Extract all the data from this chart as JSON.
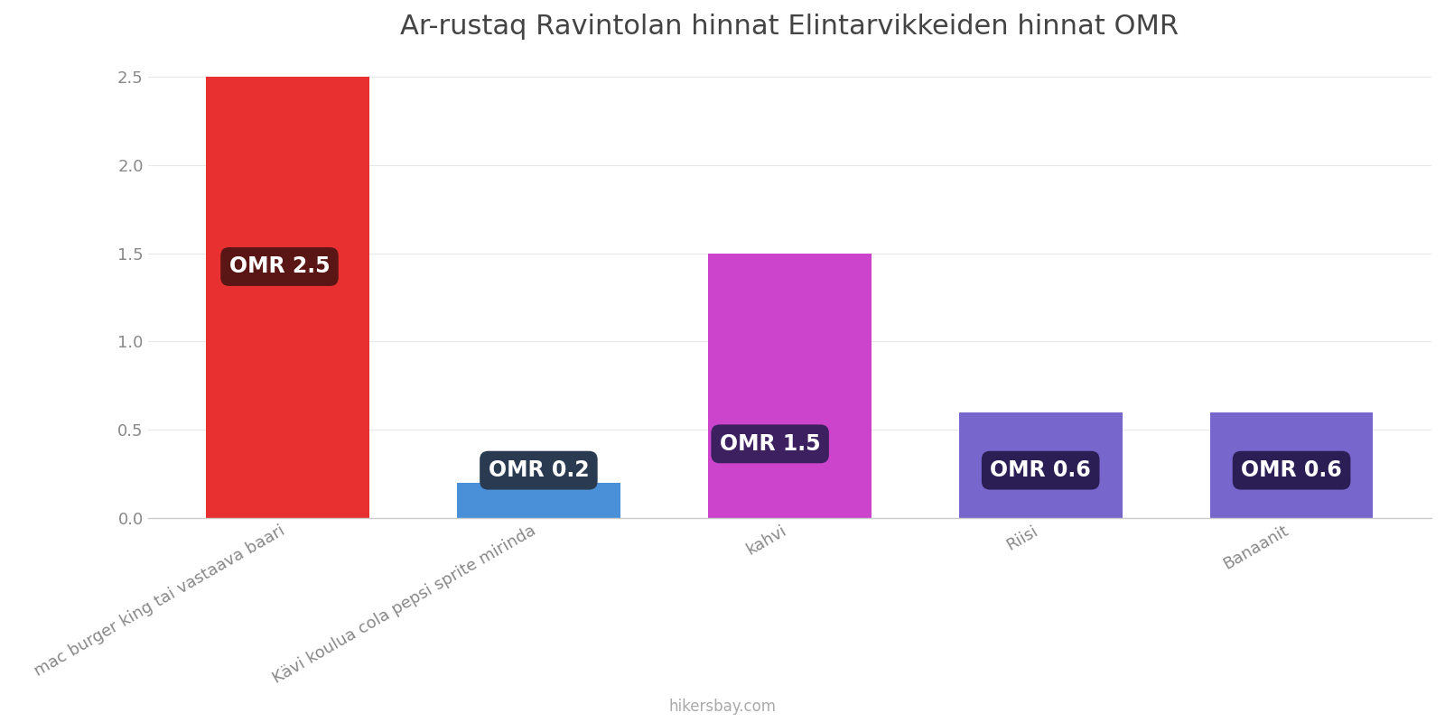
{
  "title": "Ar-rustaq Ravintolan hinnat Elintarvikkeiden hinnat OMR",
  "categories": [
    "mac burger king tai vastaava baari",
    "Kävi koulua cola pepsi sprite mirinda",
    "kahvi",
    "Riisi",
    "Banaanit"
  ],
  "values": [
    2.5,
    0.2,
    1.5,
    0.6,
    0.6
  ],
  "bar_colors": [
    "#e83030",
    "#4a90d9",
    "#cc44cc",
    "#7766cc",
    "#7766cc"
  ],
  "label_texts": [
    "OMR 2.5",
    "OMR 0.2",
    "OMR 1.5",
    "OMR 0.6",
    "OMR 0.6"
  ],
  "label_bg_colors": [
    "#5a1515",
    "#2a3a50",
    "#3d2060",
    "#2a1e55",
    "#2a1e55"
  ],
  "ylim": [
    0,
    2.6
  ],
  "yticks": [
    0,
    0.5,
    1.0,
    1.5,
    2.0,
    2.5
  ],
  "background_color": "#ffffff",
  "title_fontsize": 22,
  "tick_label_fontsize": 13,
  "watermark": "hikersbay.com",
  "bar_width": 0.65
}
